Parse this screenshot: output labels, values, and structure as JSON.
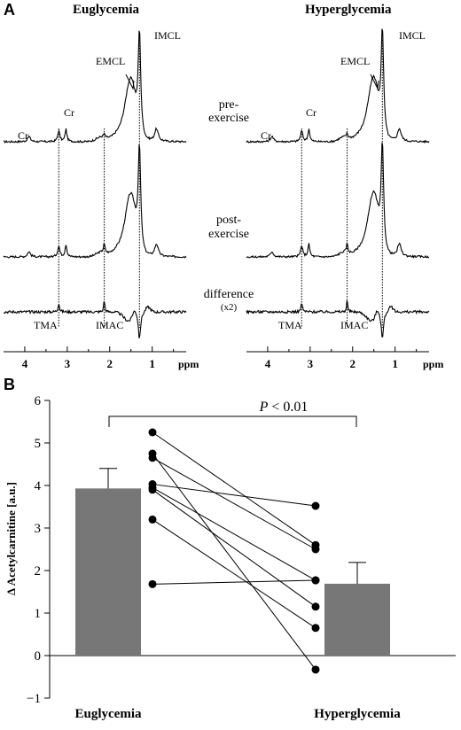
{
  "panelA": {
    "letter": "A",
    "columns": [
      {
        "title": "Euglycemia"
      },
      {
        "title": "Hyperglycemia"
      }
    ],
    "peak_labels": {
      "imcl": "IMCL",
      "emcl": "EMCL",
      "cr": "Cr",
      "tma": "TMA",
      "imac": "IMAC"
    },
    "row_labels": {
      "pre": [
        "pre-",
        "exercise"
      ],
      "post": [
        "post-",
        "exercise"
      ],
      "diff": [
        "difference",
        "(x2)"
      ]
    },
    "ppm_ticks": [
      4,
      3,
      2,
      1
    ],
    "ppm_unit": "ppm",
    "vline_positions_ppm": [
      3.2,
      2.13,
      1.3
    ]
  },
  "panelB": {
    "letter": "B",
    "significance": {
      "p_italic": "P",
      "p_text": " < 0.01"
    }
  },
  "chart_data": {
    "type": "bar",
    "categories": [
      "Euglycemia",
      "Hyperglycemia"
    ],
    "values": [
      3.93,
      1.69
    ],
    "errors": [
      0.47,
      0.5
    ],
    "ylabel": "Δ Acetylcarnitine [a.u.]",
    "ylim": [
      -1,
      6
    ],
    "yticks": [
      -1,
      0,
      1,
      2,
      3,
      4,
      5,
      6
    ],
    "bar_color": "#777777",
    "paired": [
      [
        5.25,
        2.6
      ],
      [
        4.75,
        -0.33
      ],
      [
        4.65,
        2.5
      ],
      [
        4.03,
        3.52
      ],
      [
        3.95,
        1.77
      ],
      [
        3.9,
        1.15
      ],
      [
        3.2,
        0.65
      ],
      [
        1.68,
        1.77
      ]
    ]
  }
}
